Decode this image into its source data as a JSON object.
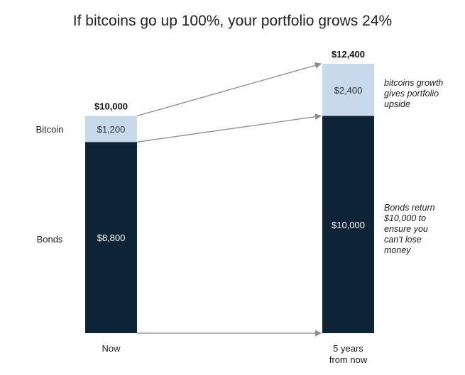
{
  "chart_data": {
    "type": "bar",
    "stacked": true,
    "title": "If bitcoins go up 100%, your portfolio grows 24%",
    "categories": [
      "Now",
      "5 years from now"
    ],
    "series": [
      {
        "name": "Bonds",
        "values": [
          8800,
          10000
        ],
        "color": "#0d2436"
      },
      {
        "name": "Bitcoin",
        "values": [
          1200,
          2400
        ],
        "color": "#c5d9ea"
      }
    ],
    "value_labels": {
      "Bonds": [
        "$8,800",
        "$10,000"
      ],
      "Bitcoin": [
        "$1,200",
        "$2,400"
      ]
    },
    "totals": [
      10000,
      12400
    ],
    "total_labels": [
      "$10,000",
      "$12,400"
    ],
    "row_labels": [
      "Bitcoin",
      "Bonds"
    ],
    "category_labels": [
      [
        "Now"
      ],
      [
        "5 years",
        "from now"
      ]
    ],
    "annotations": [
      [
        "bitcoins growth",
        "gives portfolio",
        "upside"
      ],
      [
        "Bonds return",
        "$10,000 to",
        "ensure you",
        "can’t lose",
        "money"
      ]
    ],
    "ylim": [
      0,
      12400
    ],
    "grid": false,
    "legend": "none"
  }
}
